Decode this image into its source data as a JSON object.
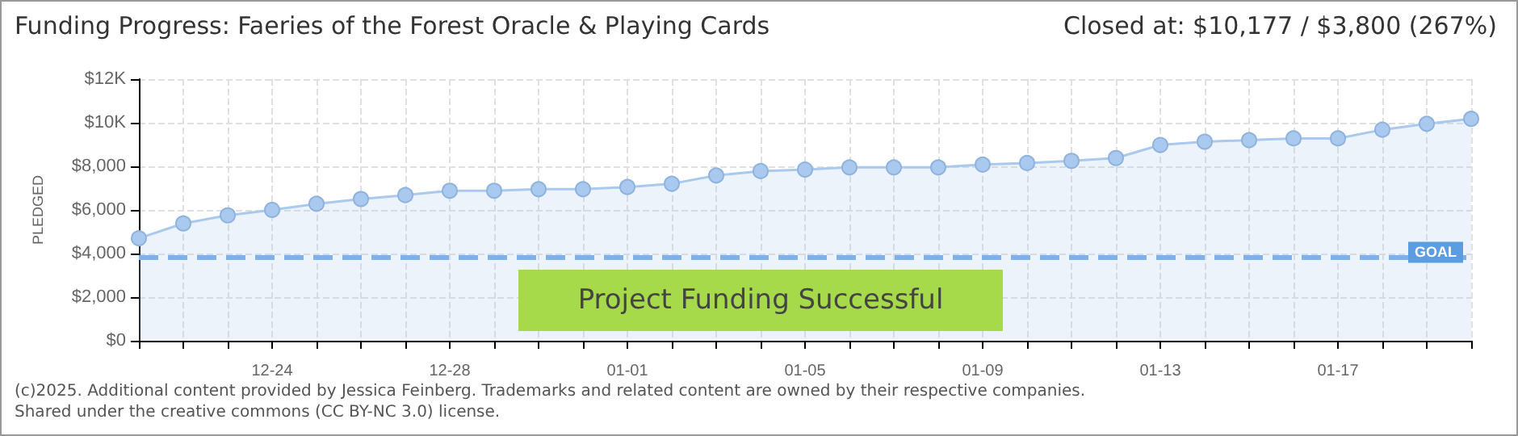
{
  "chart_data": {
    "type": "area",
    "title": "Funding Progress: Faeries of the Forest Oracle & Playing Cards",
    "subtitle": "Closed at: $10,177 / $3,800 (267%)",
    "ylabel": "PLEDGED",
    "categories": [
      null,
      null,
      null,
      "12-24",
      null,
      null,
      null,
      "12-28",
      null,
      null,
      null,
      "01-01",
      null,
      null,
      null,
      "01-05",
      null,
      null,
      null,
      "01-09",
      null,
      null,
      null,
      "01-13",
      null,
      null,
      null,
      "01-17",
      null,
      null,
      null
    ],
    "series": [
      {
        "color": "#a9c9ee",
        "values": [
          4700,
          5380,
          5750,
          6000,
          6280,
          6500,
          6680,
          6880,
          6880,
          6950,
          6950,
          7050,
          7200,
          7580,
          7780,
          7850,
          7950,
          7950,
          7950,
          8080,
          8150,
          8250,
          8380,
          8980,
          9130,
          9200,
          9280,
          9280,
          9680,
          9950,
          10177
        ]
      }
    ],
    "ylim": [
      0,
      12000
    ],
    "yticks": [
      {
        "value": 0,
        "label": "$0"
      },
      {
        "value": 2000,
        "label": "$2,000"
      },
      {
        "value": 4000,
        "label": "$4,000"
      },
      {
        "value": 6000,
        "label": "$6,000"
      },
      {
        "value": 8000,
        "label": "$8,000"
      },
      {
        "value": 10000,
        "label": "$10K"
      },
      {
        "value": 12000,
        "label": "$12K"
      }
    ],
    "grid": true,
    "marker": "circle",
    "line_style": "solid",
    "ref_lines": [
      {
        "axis": "y",
        "value": 3800,
        "label": "GOAL",
        "color": "#7fb0e8",
        "line_style": "dashed"
      }
    ],
    "annotations": [
      "Project Funding Successful",
      "(c)2025. Additional content provided by Jessica Feinberg. Trademarks and related content are owned by their respective companies.",
      "Shared under the creative commons (CC BY-NC 3.0) license."
    ]
  }
}
